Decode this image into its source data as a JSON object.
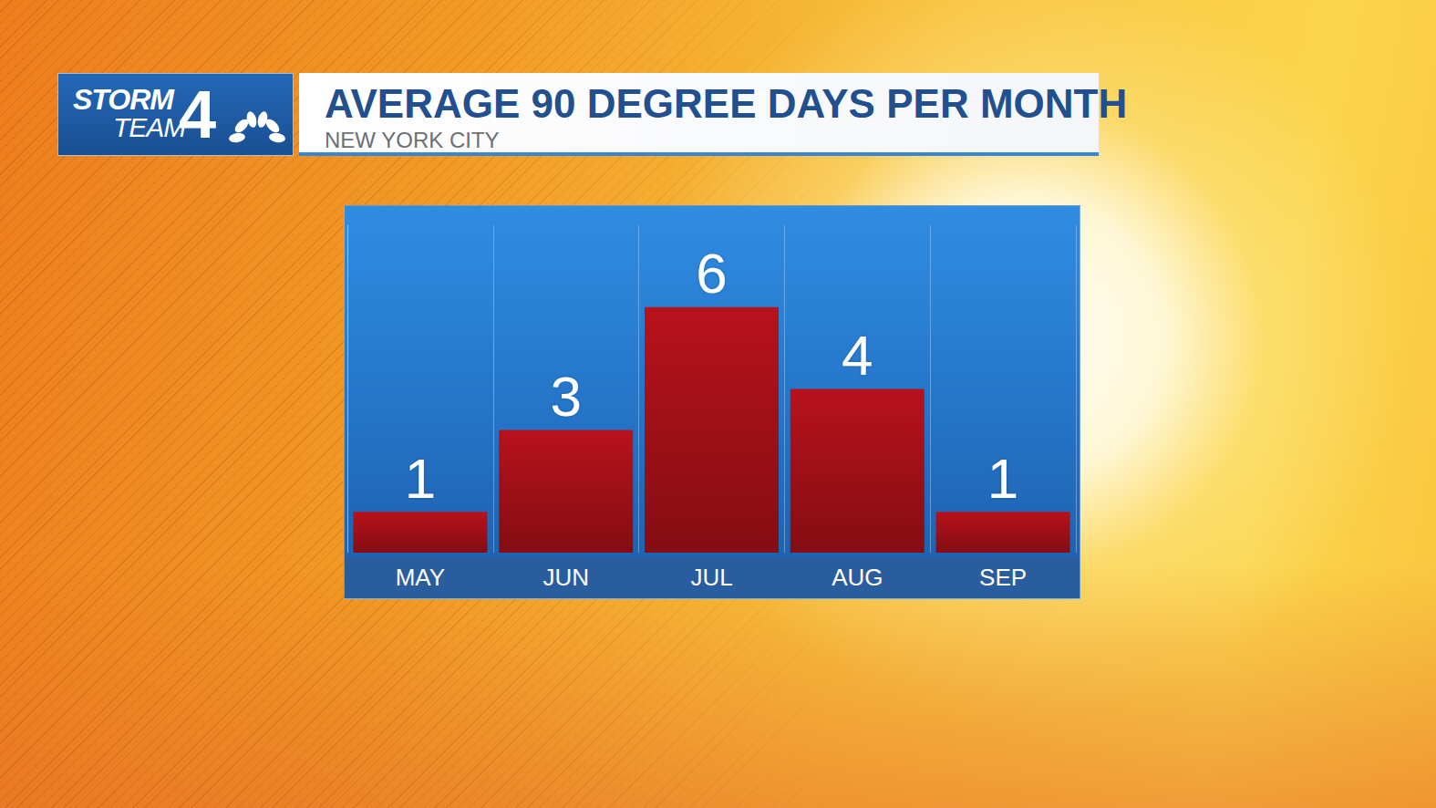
{
  "header": {
    "logo": [
      "STORM",
      "TEAM",
      "4"
    ]
  },
  "chart_data": {
    "type": "bar",
    "title": "AVERAGE 90 DEGREE DAYS PER MONTH",
    "subtitle": "NEW YORK CITY",
    "categories": [
      "MAY",
      "JUN",
      "JUL",
      "AUG",
      "SEP"
    ],
    "values": [
      1,
      3,
      6,
      4,
      1
    ],
    "color": "#b8121b",
    "ylim": [
      0,
      8
    ],
    "grid": false,
    "data_labels": true,
    "tick_labels": "x"
  }
}
